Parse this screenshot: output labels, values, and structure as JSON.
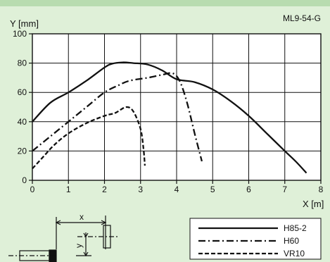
{
  "code": "ML9-54-G",
  "colors": {
    "background": "#dff0d8",
    "top_bar": "#b8dcb0",
    "ink": "#111111"
  },
  "chart_data": {
    "type": "line",
    "xlabel": "X [m]",
    "ylabel": "Y [mm]",
    "xlim": [
      0,
      8
    ],
    "ylim": [
      0,
      100
    ],
    "xticks": [
      0,
      1,
      2,
      3,
      4,
      5,
      6,
      7,
      8
    ],
    "yticks": [
      0,
      20,
      40,
      60,
      80,
      100
    ],
    "grid": true,
    "legend_position": "bottom-right",
    "series": [
      {
        "name": "H85-2",
        "style": "solid",
        "points": [
          [
            0,
            40
          ],
          [
            0.5,
            53
          ],
          [
            1,
            60
          ],
          [
            1.5,
            68
          ],
          [
            2,
            77
          ],
          [
            2.2,
            79.5
          ],
          [
            2.5,
            80.5
          ],
          [
            2.8,
            80
          ],
          [
            3.2,
            79
          ],
          [
            3.6,
            75
          ],
          [
            4,
            69
          ],
          [
            4.5,
            67
          ],
          [
            5,
            62
          ],
          [
            5.5,
            54
          ],
          [
            6,
            44
          ],
          [
            6.5,
            32
          ],
          [
            7,
            20
          ],
          [
            7.3,
            13
          ],
          [
            7.6,
            5
          ]
        ]
      },
      {
        "name": "H60",
        "style": "dashdot",
        "points": [
          [
            0,
            20
          ],
          [
            0.5,
            30
          ],
          [
            1,
            40
          ],
          [
            1.5,
            50
          ],
          [
            2,
            60
          ],
          [
            2.4,
            65
          ],
          [
            2.7,
            68
          ],
          [
            3.2,
            70
          ],
          [
            3.6,
            72
          ],
          [
            3.9,
            73
          ],
          [
            4.1,
            67
          ],
          [
            4.3,
            52
          ],
          [
            4.5,
            32
          ],
          [
            4.7,
            13
          ]
        ]
      },
      {
        "name": "VR10",
        "style": "dashed",
        "points": [
          [
            0,
            8
          ],
          [
            0.3,
            16
          ],
          [
            0.6,
            24
          ],
          [
            1,
            32
          ],
          [
            1.5,
            39
          ],
          [
            2,
            44
          ],
          [
            2.3,
            46
          ],
          [
            2.6,
            50
          ],
          [
            2.8,
            47
          ],
          [
            3,
            35
          ],
          [
            3.08,
            22
          ],
          [
            3.12,
            10
          ]
        ]
      }
    ]
  },
  "diagram": {
    "x_label": "x",
    "y_label": "y"
  }
}
